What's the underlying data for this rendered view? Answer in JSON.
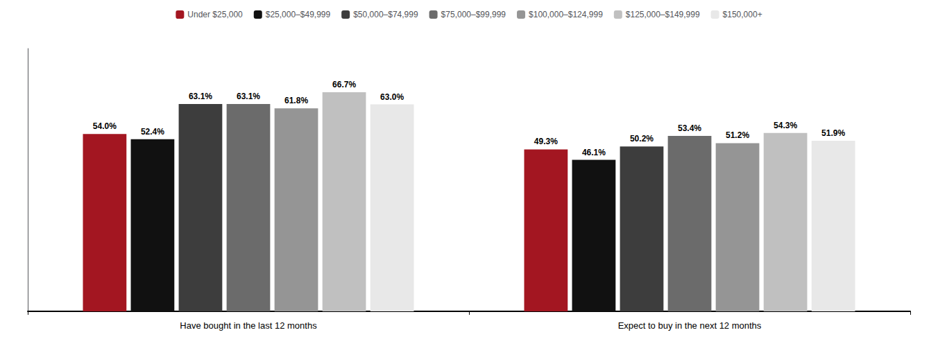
{
  "chart_data": {
    "type": "bar",
    "categories": [
      "Have bought in the last 12 months",
      "Expect to buy in the next 12 months"
    ],
    "series": [
      {
        "name": "Under $25,000",
        "color": "#A31621",
        "values": [
          54.0,
          49.3
        ],
        "value_labels": [
          "54.0%",
          "49.3%"
        ]
      },
      {
        "name": "$25,000–$49,999",
        "color": "#111111",
        "values": [
          52.4,
          46.1
        ],
        "value_labels": [
          "52.4%",
          "46.1%"
        ]
      },
      {
        "name": "$50,000–$74,999",
        "color": "#3D3D3D",
        "values": [
          63.1,
          50.2
        ],
        "value_labels": [
          "63.1%",
          "50.2%"
        ]
      },
      {
        "name": "$75,000–$99,999",
        "color": "#6B6B6B",
        "values": [
          63.1,
          53.4
        ],
        "value_labels": [
          "63.1%",
          "53.4%"
        ]
      },
      {
        "name": "$100,000–$124,999",
        "color": "#959595",
        "values": [
          61.8,
          51.2
        ],
        "value_labels": [
          "61.8%",
          "51.2%"
        ]
      },
      {
        "name": "$125,000–$149,999",
        "color": "#C0C0C0",
        "values": [
          66.7,
          54.3
        ],
        "value_labels": [
          "66.7%",
          "54.3%"
        ]
      },
      {
        "name": "$150,000+",
        "color": "#E8E8E8",
        "values": [
          63.0,
          51.9
        ],
        "value_labels": [
          "63.0%",
          "51.9%"
        ]
      }
    ],
    "ylim": [
      0,
      80
    ],
    "grid": false,
    "legend": "top",
    "data_labels": true,
    "tick_labels": "x"
  }
}
